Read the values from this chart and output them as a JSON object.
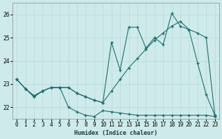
{
  "xlabel": "Humidex (Indice chaleur)",
  "bg_color": "#ceeaea",
  "grid_color": "#b8d8d8",
  "line_color": "#1a7070",
  "x_ticks": [
    0,
    1,
    2,
    3,
    4,
    5,
    6,
    7,
    8,
    9,
    10,
    11,
    12,
    13,
    14,
    15,
    16,
    17,
    18,
    19,
    20,
    21,
    22,
    23
  ],
  "yticks": [
    22,
    23,
    24,
    25,
    26
  ],
  "ylim": [
    21.5,
    26.5
  ],
  "xlim": [
    -0.5,
    23.5
  ],
  "series1": [
    23.2,
    22.8,
    22.5,
    22.7,
    22.85,
    22.85,
    22.85,
    22.6,
    22.45,
    22.3,
    22.2,
    22.7,
    23.2,
    23.7,
    24.1,
    24.5,
    24.9,
    25.2,
    25.5,
    25.7,
    25.35,
    25.2,
    25.0,
    21.65
  ],
  "series2": [
    23.2,
    22.8,
    22.45,
    22.7,
    22.85,
    22.85,
    22.85,
    22.6,
    22.45,
    22.3,
    22.2,
    24.8,
    23.6,
    25.45,
    25.45,
    24.55,
    25.0,
    24.7,
    26.05,
    25.5,
    25.35,
    23.9,
    22.55,
    21.65
  ],
  "series3": [
    23.2,
    22.8,
    22.45,
    22.7,
    22.85,
    22.85,
    22.0,
    21.8,
    21.65,
    21.6,
    21.85,
    21.8,
    21.75,
    21.7,
    21.65,
    21.65,
    21.65,
    21.65,
    21.65,
    21.65,
    21.65,
    21.65,
    21.65,
    21.6
  ]
}
